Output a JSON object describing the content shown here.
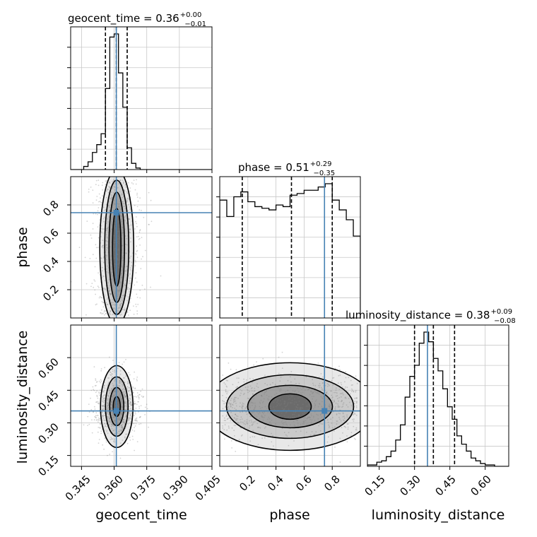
{
  "chart_data": [
    {
      "type": "histogram",
      "parameter": "geocent_time",
      "title": "geocent_time = 0.36",
      "title_plus": "+0.00",
      "title_minus": "−0.01",
      "xlim": [
        0.34,
        0.405
      ],
      "xticks": [
        "0.345",
        "0.360",
        "0.375",
        "0.390",
        "0.405"
      ],
      "xlabel": "geocent_time",
      "quantiles": [
        0.356,
        0.361,
        0.366
      ],
      "truth": 0.361,
      "bin_edges": [
        0.34,
        0.342,
        0.344,
        0.346,
        0.348,
        0.35,
        0.352,
        0.354,
        0.356,
        0.358,
        0.36,
        0.362,
        0.364,
        0.366,
        0.368,
        0.37,
        0.372,
        0.374,
        0.376,
        0.378,
        0.38,
        0.382,
        0.384,
        0.386,
        0.388,
        0.39,
        0.392,
        0.394,
        0.396,
        0.398,
        0.4,
        0.402,
        0.405
      ],
      "counts": [
        0,
        0,
        0,
        2,
        5,
        11,
        16,
        23,
        52,
        85,
        87,
        62,
        40,
        14,
        4,
        1,
        0,
        0,
        0,
        0,
        0,
        0,
        0,
        0,
        0,
        0,
        0,
        0,
        0,
        0,
        0,
        0
      ],
      "grid": true
    },
    {
      "type": "histogram",
      "parameter": "phase",
      "title": "phase = 0.51",
      "title_plus": "+0.29",
      "title_minus": "−0.35",
      "xlim": [
        0.0,
        1.0
      ],
      "xticks": [
        "0.2",
        "0.4",
        "0.6",
        "0.8"
      ],
      "xlabel": "phase",
      "quantiles": [
        0.16,
        0.51,
        0.8
      ],
      "truth": 0.745,
      "bin_edges": [
        0.0,
        0.05,
        0.1,
        0.15,
        0.2,
        0.25,
        0.3,
        0.35,
        0.4,
        0.45,
        0.5,
        0.55,
        0.6,
        0.65,
        0.7,
        0.75,
        0.8,
        0.85,
        0.9,
        0.95,
        1.0
      ],
      "counts": [
        72,
        62,
        74,
        77,
        71,
        68,
        67,
        66,
        69,
        68,
        75,
        76,
        78,
        78,
        80,
        82,
        72,
        66,
        60,
        50
      ],
      "grid": true
    },
    {
      "type": "histogram",
      "parameter": "luminosity_distance",
      "title": "luminosity_distance = 0.38",
      "title_plus": "+0.09",
      "title_minus": "−0.08",
      "xlim": [
        0.1,
        0.7
      ],
      "xticks": [
        "0.15",
        "0.30",
        "0.45",
        "0.60"
      ],
      "xlabel": "luminosity_distance",
      "quantiles": [
        0.3,
        0.38,
        0.47
      ],
      "truth": 0.355,
      "bin_edges": [
        0.1,
        0.12,
        0.14,
        0.16,
        0.18,
        0.2,
        0.22,
        0.24,
        0.26,
        0.28,
        0.3,
        0.32,
        0.34,
        0.36,
        0.38,
        0.4,
        0.42,
        0.44,
        0.46,
        0.48,
        0.5,
        0.52,
        0.54,
        0.56,
        0.58,
        0.6,
        0.62,
        0.64,
        0.66,
        0.68,
        0.7
      ],
      "counts": [
        1,
        1,
        3,
        4,
        7,
        11,
        19,
        30,
        50,
        65,
        73,
        89,
        97,
        90,
        78,
        69,
        56,
        43,
        34,
        22,
        16,
        11,
        6,
        4,
        2,
        1,
        1,
        0,
        0,
        0
      ],
      "grid": true
    },
    {
      "type": "scatter_contour",
      "x_parameter": "geocent_time",
      "y_parameter": "phase",
      "xlim": [
        0.34,
        0.405
      ],
      "ylim": [
        0.0,
        1.0
      ],
      "yticks": [
        "0.2",
        "0.4",
        "0.6",
        "0.8"
      ],
      "ylabel": "phase",
      "truth": [
        0.361,
        0.745
      ],
      "contour_levels": 4
    },
    {
      "type": "scatter_contour",
      "x_parameter": "geocent_time",
      "y_parameter": "luminosity_distance",
      "xlim": [
        0.34,
        0.405
      ],
      "ylim": [
        0.1,
        0.75
      ],
      "yticks": [
        "0.15",
        "0.30",
        "0.45",
        "0.60"
      ],
      "ylabel": "luminosity_distance",
      "truth": [
        0.361,
        0.355
      ],
      "contour_levels": 4
    },
    {
      "type": "scatter_contour",
      "x_parameter": "phase",
      "y_parameter": "luminosity_distance",
      "xlim": [
        0.0,
        1.0
      ],
      "ylim": [
        0.1,
        0.75
      ],
      "truth": [
        0.745,
        0.355
      ],
      "contour_levels": 4
    }
  ],
  "colors": {
    "truth": "#4682b4",
    "contour": "#000000",
    "scatter": "#808080",
    "grid": "#c8c8c8"
  }
}
